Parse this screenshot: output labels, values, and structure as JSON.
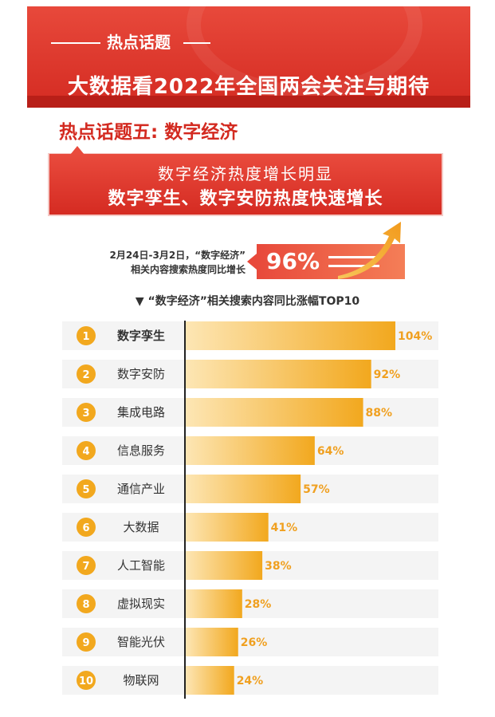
{
  "header": {
    "tag": "热点话题",
    "title": "大数据看2022年全国两会关注与期待"
  },
  "section": {
    "title": "热点话题五: 数字经济"
  },
  "callout": {
    "line1": "数字经济热度增长明显",
    "line2": "数字孪生、数字安防热度快速增长"
  },
  "stat": {
    "desc_line1": "2月24日-3月2日，“数字经济”",
    "desc_line2": "相关内容搜索热度同比增长",
    "value": "96%"
  },
  "colors": {
    "banner_red": "#d42b22",
    "accent_red": "#e8493b",
    "bar_gold": "#f2a81e",
    "bar_light": "#fde6b4",
    "rank_circle": "#f2a81e",
    "value_text": "#f0a020",
    "row_bg": "#f4f4f4"
  },
  "chart_data": {
    "type": "bar",
    "orientation": "horizontal",
    "title": "▼ “数字经济”相关搜索内容同比涨幅TOP10",
    "ranks": [
      "1",
      "2",
      "3",
      "4",
      "5",
      "6",
      "7",
      "8",
      "9",
      "10"
    ],
    "categories": [
      "数字孪生",
      "数字安防",
      "集成电路",
      "信息服务",
      "通信产业",
      "大数据",
      "人工智能",
      "虚拟现实",
      "智能光伏",
      "物联网"
    ],
    "values": [
      104,
      92,
      88,
      64,
      57,
      41,
      38,
      28,
      26,
      24
    ],
    "value_labels": [
      "104%",
      "92%",
      "88%",
      "64%",
      "57%",
      "41%",
      "38%",
      "28%",
      "26%",
      "24%"
    ],
    "xlim": [
      0,
      104
    ],
    "grid": false,
    "legend": "none"
  }
}
